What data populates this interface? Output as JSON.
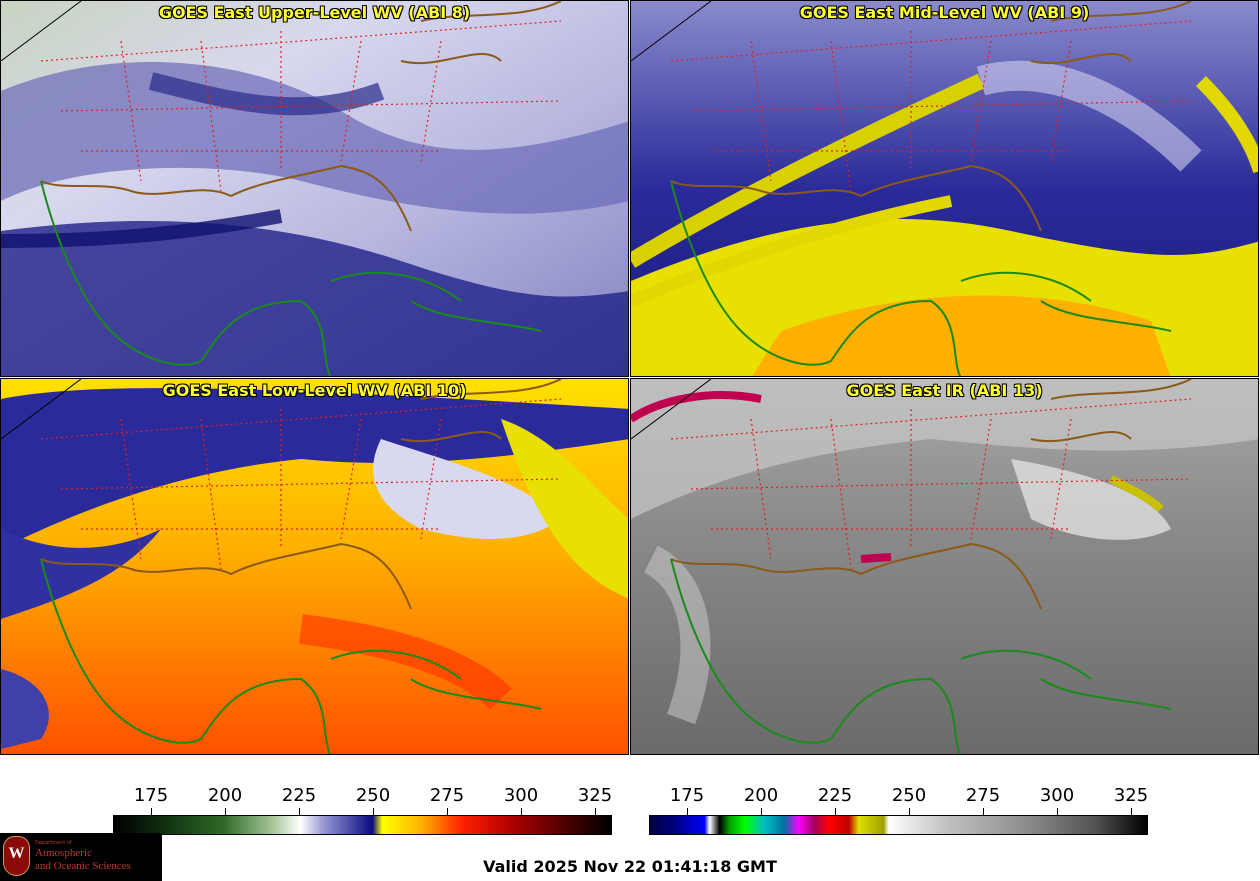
{
  "panels": [
    {
      "title": "GOES East Upper-Level WV (ABI 8)",
      "palette": "wv-upper"
    },
    {
      "title": "GOES East Mid-Level WV (ABI 9)",
      "palette": "wv-mid"
    },
    {
      "title": "GOES East Low-Level WV (ABI 10)",
      "palette": "wv-low"
    },
    {
      "title": "GOES East IR (ABI 13)",
      "palette": "ir"
    }
  ],
  "colorbar_wv": {
    "ticks": [
      "175",
      "200",
      "225",
      "250",
      "275",
      "300",
      "325"
    ]
  },
  "colorbar_ir": {
    "ticks": [
      "175",
      "200",
      "225",
      "250",
      "275",
      "300",
      "325"
    ]
  },
  "valid_time": "Valid 2025 Nov 22 01:41:18 GMT",
  "logo": {
    "line1": "Department of",
    "line2": "Atmospheric",
    "line3": "and Oceanic Sciences",
    "seal_letter": "W"
  },
  "colors": {
    "coastline": "#1a8a1a",
    "state_borders": "#e02020",
    "country_borders": "#8b5a1a",
    "title_text": "#ffff33"
  }
}
